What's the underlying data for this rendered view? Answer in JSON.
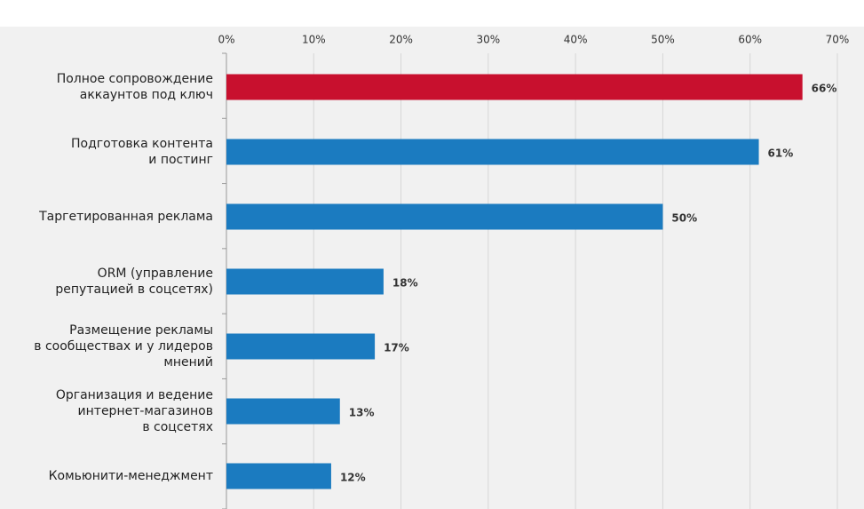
{
  "chart_data": {
    "type": "barh",
    "categories": [
      "Полное сопровождение\nаккаунтов под ключ",
      "Подготовка контента\nи постинг",
      "Таргетированная реклама",
      "ORM (управление\nрепутацией в соцсетях)",
      "Размещение рекламы\nв сообществах и у лидеров\nмнений",
      "Организация и ведение\nинтернет-магазинов\nв соцсетях",
      "Комьюнити-менеджмент"
    ],
    "values": [
      66,
      61,
      50,
      18,
      17,
      13,
      12
    ],
    "value_labels": [
      "66%",
      "61%",
      "50%",
      "18%",
      "17%",
      "13%",
      "12%"
    ],
    "colors": [
      "#c8102e",
      "#1b7bc0",
      "#1b7bc0",
      "#1b7bc0",
      "#1b7bc0",
      "#1b7bc0",
      "#1b7bc0"
    ],
    "xlim": [
      0,
      70
    ],
    "xticks": [
      {
        "value": 0,
        "label": "0%"
      },
      {
        "value": 10,
        "label": "10%"
      },
      {
        "value": 20,
        "label": "20%"
      },
      {
        "value": 30,
        "label": "30%"
      },
      {
        "value": 40,
        "label": "40%"
      },
      {
        "value": 50,
        "label": "50%"
      },
      {
        "value": 60,
        "label": "60%"
      },
      {
        "value": 70,
        "label": "70%"
      }
    ],
    "grid": true
  }
}
